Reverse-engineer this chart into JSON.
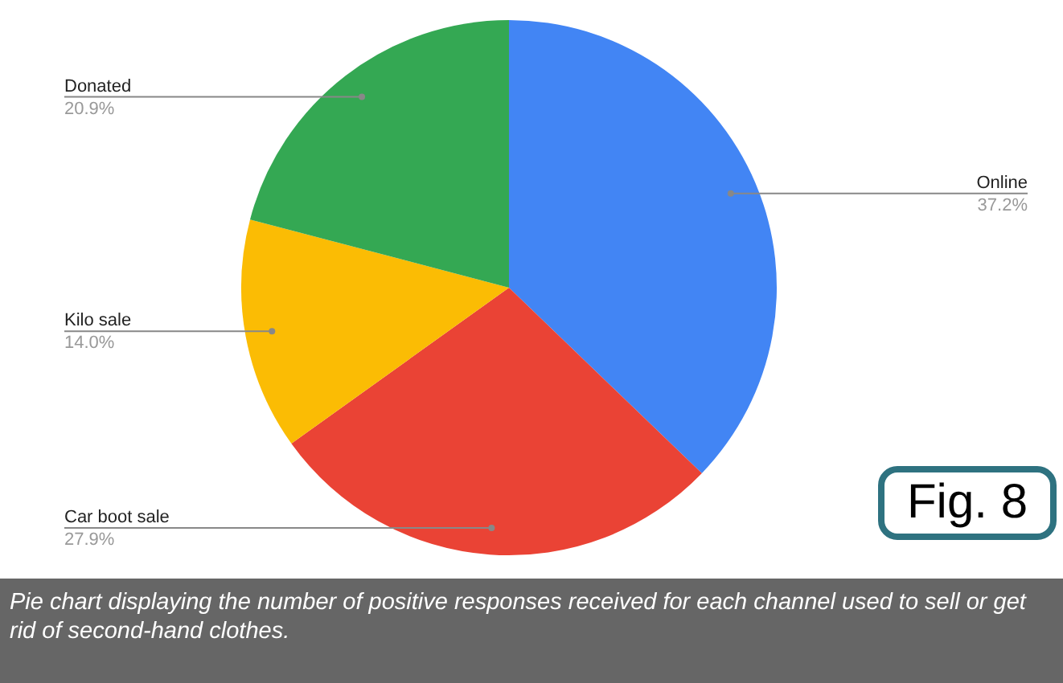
{
  "chart_data": {
    "type": "pie",
    "categories": [
      "Online",
      "Car boot sale",
      "Kilo sale",
      "Donated"
    ],
    "values": [
      37.2,
      27.9,
      14.0,
      20.9
    ],
    "colors": [
      "#4285f4",
      "#ea4335",
      "#fbbc04",
      "#34a853"
    ],
    "value_labels": [
      "37.2%",
      "27.9%",
      "14.0%",
      "20.9%"
    ],
    "legend": false,
    "annotations": [
      "Fig. 8",
      "Pie chart displaying the number of positive responses received for each channel used to sell or get rid of second-hand clothes."
    ]
  }
}
